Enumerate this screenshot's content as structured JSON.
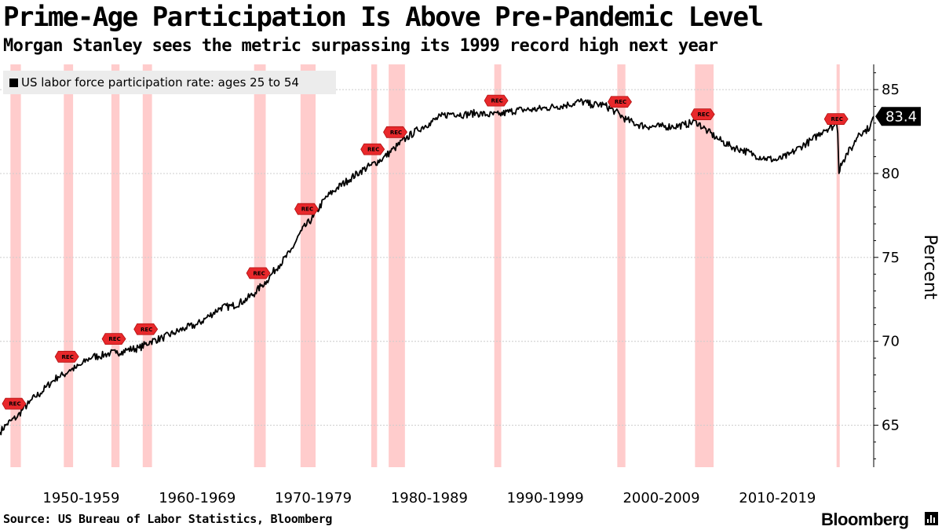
{
  "title": "Prime-Age Participation Is Above Pre-Pandemic Level",
  "subtitle": "Morgan Stanley sees the metric surpassing its 1999 record high next year",
  "source": "Source: US Bureau of Labor Statistics, Bloomberg",
  "brand": "Bloomberg",
  "colors": {
    "line": "#000000",
    "recession_band": "#ffcccc",
    "rec_marker": "#e8282b",
    "legend_bg": "#ececec",
    "grid": "#cccccc"
  },
  "chart_data": {
    "type": "line",
    "title": "Prime-Age Participation Is Above Pre-Pandemic Level",
    "subtitle": "Morgan Stanley sees the metric surpassing its 1999 record high next year",
    "xlabel": "",
    "ylabel": "Percent",
    "ylim": [
      62.5,
      86.5
    ],
    "xlim": [
      1948.0,
      2023.3
    ],
    "y_ticks": [
      65,
      70,
      75,
      80,
      85
    ],
    "x_tick_labels": [
      "1950-1959",
      "1960-1969",
      "1970-1979",
      "1980-1989",
      "1990-1999",
      "2000-2009",
      "2010-2019"
    ],
    "x_tick_centers": [
      1955,
      1965,
      1975,
      1985,
      1995,
      2005,
      2015
    ],
    "grid": true,
    "legend": "top-left",
    "last_value_label": "83.4",
    "series": [
      {
        "name": "US labor force participation rate: ages 25 to 54",
        "x": [
          1948.0,
          1948.5,
          1949.0,
          1949.5,
          1950.0,
          1950.5,
          1951.0,
          1951.5,
          1952.0,
          1952.5,
          1953.0,
          1953.5,
          1954.0,
          1954.5,
          1955.0,
          1955.5,
          1956.0,
          1956.5,
          1957.0,
          1957.5,
          1958.0,
          1958.5,
          1959.0,
          1960.0,
          1961.0,
          1962.0,
          1963.0,
          1964.0,
          1965.0,
          1966.0,
          1967.0,
          1968.0,
          1969.0,
          1970.0,
          1970.5,
          1971.0,
          1971.5,
          1972.0,
          1973.0,
          1974.0,
          1975.0,
          1976.0,
          1977.0,
          1978.0,
          1979.0,
          1980.0,
          1981.0,
          1982.0,
          1983.0,
          1984.0,
          1985.0,
          1986.0,
          1987.0,
          1988.0,
          1989.0,
          1990.0,
          1991.0,
          1992.0,
          1993.0,
          1994.0,
          1995.0,
          1996.0,
          1997.0,
          1998.0,
          1999.0,
          2000.0,
          2001.0,
          2002.0,
          2003.0,
          2004.0,
          2005.0,
          2006.0,
          2007.0,
          2008.0,
          2009.0,
          2010.0,
          2011.0,
          2012.0,
          2013.0,
          2014.0,
          2015.0,
          2016.0,
          2017.0,
          2018.0,
          2019.0,
          2019.8,
          2020.1,
          2020.2,
          2020.3,
          2020.45,
          2020.7,
          2021.0,
          2021.5,
          2022.0,
          2022.5,
          2023.0,
          2023.3
        ],
        "values": [
          64.6,
          65.0,
          65.3,
          65.5,
          66.0,
          66.3,
          66.7,
          66.9,
          67.3,
          67.6,
          67.9,
          68.0,
          68.3,
          68.4,
          68.6,
          68.9,
          69.1,
          69.1,
          69.2,
          69.3,
          69.3,
          69.4,
          69.5,
          69.6,
          70.0,
          70.2,
          70.5,
          70.8,
          71.0,
          71.5,
          72.0,
          72.1,
          72.4,
          72.9,
          73.3,
          73.6,
          74.1,
          74.5,
          75.3,
          76.6,
          77.4,
          78.5,
          79.1,
          79.6,
          80.1,
          80.5,
          80.9,
          81.5,
          82.1,
          82.6,
          83.0,
          83.4,
          83.6,
          83.5,
          83.6,
          83.5,
          83.5,
          83.7,
          83.8,
          83.8,
          83.9,
          84.0,
          84.1,
          84.3,
          84.1,
          84.1,
          83.7,
          83.2,
          82.9,
          82.8,
          82.8,
          82.8,
          82.9,
          83.1,
          82.5,
          82.0,
          81.6,
          81.4,
          81.1,
          80.9,
          80.8,
          81.1,
          81.6,
          82.0,
          82.6,
          82.8,
          83.0,
          82.4,
          80.0,
          80.6,
          80.8,
          81.2,
          81.6,
          82.4,
          82.5,
          82.8,
          83.4
        ]
      }
    ],
    "recessions": [
      {
        "start": 1948.9,
        "end": 1949.8
      },
      {
        "start": 1953.5,
        "end": 1954.3
      },
      {
        "start": 1957.6,
        "end": 1958.3
      },
      {
        "start": 1960.3,
        "end": 1961.1
      },
      {
        "start": 1969.9,
        "end": 1970.9
      },
      {
        "start": 1973.9,
        "end": 1975.2
      },
      {
        "start": 1980.0,
        "end": 1980.5
      },
      {
        "start": 1981.5,
        "end": 1982.9
      },
      {
        "start": 1990.6,
        "end": 1991.2
      },
      {
        "start": 2001.2,
        "end": 2001.9
      },
      {
        "start": 2007.9,
        "end": 2009.5
      },
      {
        "start": 2020.1,
        "end": 2020.3
      }
    ],
    "annotations": [
      {
        "label": "REC",
        "recession_index": 0
      },
      {
        "label": "REC",
        "recession_index": 1
      },
      {
        "label": "REC",
        "recession_index": 2
      },
      {
        "label": "REC",
        "recession_index": 3
      },
      {
        "label": "REC",
        "recession_index": 4
      },
      {
        "label": "REC",
        "recession_index": 5
      },
      {
        "label": "REC",
        "recession_index": 6
      },
      {
        "label": "REC",
        "recession_index": 7
      },
      {
        "label": "REC",
        "recession_index": 8
      },
      {
        "label": "REC",
        "recession_index": 9
      },
      {
        "label": "REC",
        "recession_index": 10
      },
      {
        "label": "REC",
        "recession_index": 11
      }
    ]
  }
}
